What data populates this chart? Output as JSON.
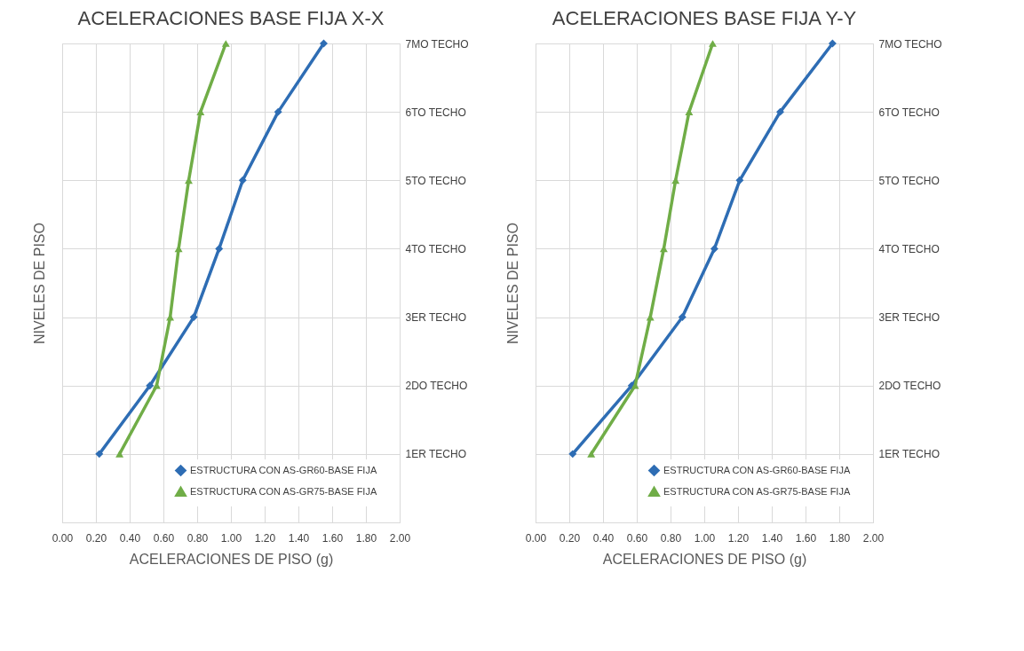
{
  "chart_data": [
    {
      "type": "line",
      "title": "ACELERACIONES BASE FIJA X-X",
      "xlabel": "ACELERACIONES DE PISO (g)",
      "ylabel": "NIVELES DE PISO",
      "xlim": [
        0,
        2
      ],
      "xticks": [
        {
          "value": 0,
          "label": "0.00"
        },
        {
          "value": 0.2,
          "label": "0.20"
        },
        {
          "value": 0.4,
          "label": "0.40"
        },
        {
          "value": 0.6,
          "label": "0.60"
        },
        {
          "value": 0.8,
          "label": "0.80"
        },
        {
          "value": 1,
          "label": "1.00"
        },
        {
          "value": 1.2,
          "label": "1.20"
        },
        {
          "value": 1.4,
          "label": "1.40"
        },
        {
          "value": 1.6,
          "label": "1.60"
        },
        {
          "value": 1.8,
          "label": "1.80"
        },
        {
          "value": 2,
          "label": "2.00"
        }
      ],
      "ylim": [
        0,
        7
      ],
      "yticks": [
        {
          "value": 0,
          "label": null
        },
        {
          "value": 1,
          "label": "1ER TECHO"
        },
        {
          "value": 2,
          "label": "2DO TECHO"
        },
        {
          "value": 3,
          "label": "3ER TECHO"
        },
        {
          "value": 4,
          "label": "4TO TECHO"
        },
        {
          "value": 5,
          "label": "5TO TECHO"
        },
        {
          "value": 6,
          "label": "6TO TECHO"
        },
        {
          "value": 7,
          "label": "7MO TECHO"
        }
      ],
      "grid": true,
      "legend": "bottom right",
      "series": [
        {
          "name": "ESTRUCTURA CON AS-GR60-BASE FIJA",
          "color": "#2e6db4",
          "marker": "diamond",
          "x": [
            0.22,
            0.52,
            0.78,
            0.93,
            1.07,
            1.28,
            1.55
          ],
          "values": [
            1,
            2,
            3,
            4,
            5,
            6,
            7
          ]
        },
        {
          "name": "ESTRUCTURA CON AS-GR75-BASE FIJA",
          "color": "#70ad47",
          "marker": "triangle",
          "x": [
            0.34,
            0.56,
            0.64,
            0.69,
            0.75,
            0.82,
            0.97
          ],
          "values": [
            1,
            2,
            3,
            4,
            5,
            6,
            7
          ]
        }
      ]
    },
    {
      "type": "line",
      "title": "ACELERACIONES BASE FIJA Y-Y",
      "xlabel": "ACELERACIONES DE PISO (g)",
      "ylabel": "NIVELES DE PISO",
      "xlim": [
        0,
        2
      ],
      "xticks": [
        {
          "value": 0,
          "label": "0.00"
        },
        {
          "value": 0.2,
          "label": "0.20"
        },
        {
          "value": 0.4,
          "label": "0.40"
        },
        {
          "value": 0.6,
          "label": "0.60"
        },
        {
          "value": 0.8,
          "label": "0.80"
        },
        {
          "value": 1,
          "label": "1.00"
        },
        {
          "value": 1.2,
          "label": "1.20"
        },
        {
          "value": 1.4,
          "label": "1.40"
        },
        {
          "value": 1.6,
          "label": "1.60"
        },
        {
          "value": 1.8,
          "label": "1.80"
        },
        {
          "value": 2,
          "label": "2.00"
        }
      ],
      "ylim": [
        0,
        7
      ],
      "yticks": [
        {
          "value": 0,
          "label": null
        },
        {
          "value": 1,
          "label": "1ER TECHO"
        },
        {
          "value": 2,
          "label": "2DO TECHO"
        },
        {
          "value": 3,
          "label": "3ER TECHO"
        },
        {
          "value": 4,
          "label": "4TO TECHO"
        },
        {
          "value": 5,
          "label": "5TO TECHO"
        },
        {
          "value": 6,
          "label": "6TO TECHO"
        },
        {
          "value": 7,
          "label": "7MO TECHO"
        }
      ],
      "grid": true,
      "legend": "bottom right",
      "series": [
        {
          "name": "ESTRUCTURA CON AS-GR60-BASE FIJA",
          "color": "#2e6db4",
          "marker": "diamond",
          "x": [
            0.22,
            0.57,
            0.87,
            1.06,
            1.21,
            1.45,
            1.76
          ],
          "values": [
            1,
            2,
            3,
            4,
            5,
            6,
            7
          ]
        },
        {
          "name": "ESTRUCTURA CON AS-GR75-BASE FIJA",
          "color": "#70ad47",
          "marker": "triangle",
          "x": [
            0.33,
            0.59,
            0.68,
            0.76,
            0.83,
            0.91,
            1.05
          ],
          "values": [
            1,
            2,
            3,
            4,
            5,
            6,
            7
          ]
        }
      ]
    }
  ]
}
